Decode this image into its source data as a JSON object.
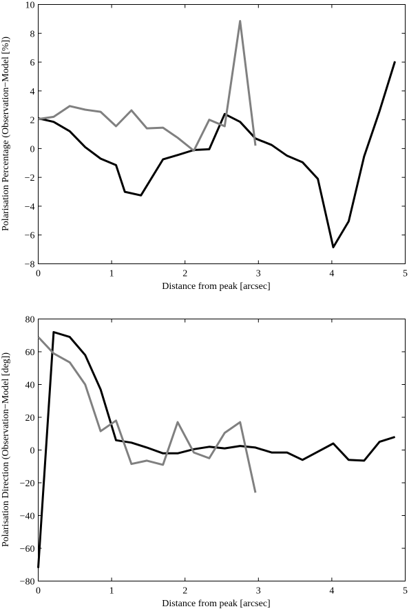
{
  "chart_data": [
    {
      "type": "line",
      "title": "",
      "xlabel": "Distance from peak [arcsec]",
      "ylabel": "Polarisation Percentage (Observation−Model [%])",
      "xlim": [
        0,
        5
      ],
      "ylim": [
        -8,
        10
      ],
      "xticks": [
        "0",
        "1",
        "2",
        "3",
        "4",
        "5"
      ],
      "yticks": [
        "−8",
        "−6",
        "−4",
        "−2",
        "0",
        "2",
        "4",
        "6",
        "8",
        "10"
      ],
      "grid": false,
      "series": [
        {
          "color": "#000000",
          "x": [
            0.0,
            0.21,
            0.43,
            0.64,
            0.85,
            1.06,
            1.18,
            1.4,
            1.7,
            1.9,
            2.12,
            2.33,
            2.54,
            2.75,
            2.96,
            3.18,
            3.39,
            3.6,
            3.81,
            4.02,
            4.23,
            4.44,
            4.65,
            4.86
          ],
          "y": [
            2.1,
            1.85,
            1.2,
            0.1,
            -0.7,
            -1.15,
            -3.0,
            -3.25,
            -0.75,
            -0.45,
            -0.1,
            -0.05,
            2.4,
            1.85,
            0.7,
            0.25,
            -0.5,
            -0.95,
            -2.1,
            -6.85,
            -5.05,
            -0.55,
            2.6,
            6.05
          ]
        },
        {
          "color": "#808080",
          "x": [
            0.0,
            0.21,
            0.43,
            0.64,
            0.85,
            1.06,
            1.27,
            1.48,
            1.7,
            1.9,
            2.12,
            2.33,
            2.54,
            2.75,
            2.96
          ],
          "y": [
            2.05,
            2.2,
            2.95,
            2.7,
            2.55,
            1.55,
            2.65,
            1.4,
            1.45,
            0.75,
            -0.15,
            2.0,
            1.55,
            8.85,
            0.2
          ]
        }
      ]
    },
    {
      "type": "line",
      "title": "",
      "xlabel": "Distance from peak [arcsec]",
      "ylabel": "Polarisation Direction (Observation−Model [deg])",
      "xlim": [
        0,
        5
      ],
      "ylim": [
        -80,
        80
      ],
      "xticks": [
        "0",
        "1",
        "2",
        "3",
        "4",
        "5"
      ],
      "yticks": [
        "−80",
        "−60",
        "−40",
        "−20",
        "0",
        "20",
        "40",
        "60",
        "80"
      ],
      "grid": false,
      "series": [
        {
          "color": "#000000",
          "x": [
            0.0,
            0.21,
            0.43,
            0.64,
            0.85,
            1.06,
            1.27,
            1.48,
            1.7,
            1.9,
            2.12,
            2.33,
            2.54,
            2.75,
            2.96,
            3.18,
            3.39,
            3.6,
            3.81,
            4.02,
            4.23,
            4.44,
            4.65,
            4.86
          ],
          "y": [
            -72.0,
            72.0,
            69.0,
            58.0,
            37.0,
            6.0,
            4.5,
            1.5,
            -2.0,
            -2.0,
            0.5,
            2.0,
            1.0,
            2.5,
            1.5,
            -1.5,
            -1.5,
            -6.0,
            -1.0,
            4.0,
            -6.0,
            -6.5,
            5.0,
            8.0
          ]
        },
        {
          "color": "#808080",
          "x": [
            0.0,
            0.21,
            0.43,
            0.64,
            0.85,
            1.06,
            1.27,
            1.48,
            1.7,
            1.9,
            2.12,
            2.33,
            2.54,
            2.75,
            2.96
          ],
          "y": [
            69.0,
            59.0,
            53.5,
            40.0,
            11.5,
            18.0,
            -8.5,
            -6.5,
            -9.0,
            17.0,
            -1.5,
            -5.0,
            10.5,
            17.0,
            -26.0
          ]
        }
      ]
    }
  ]
}
